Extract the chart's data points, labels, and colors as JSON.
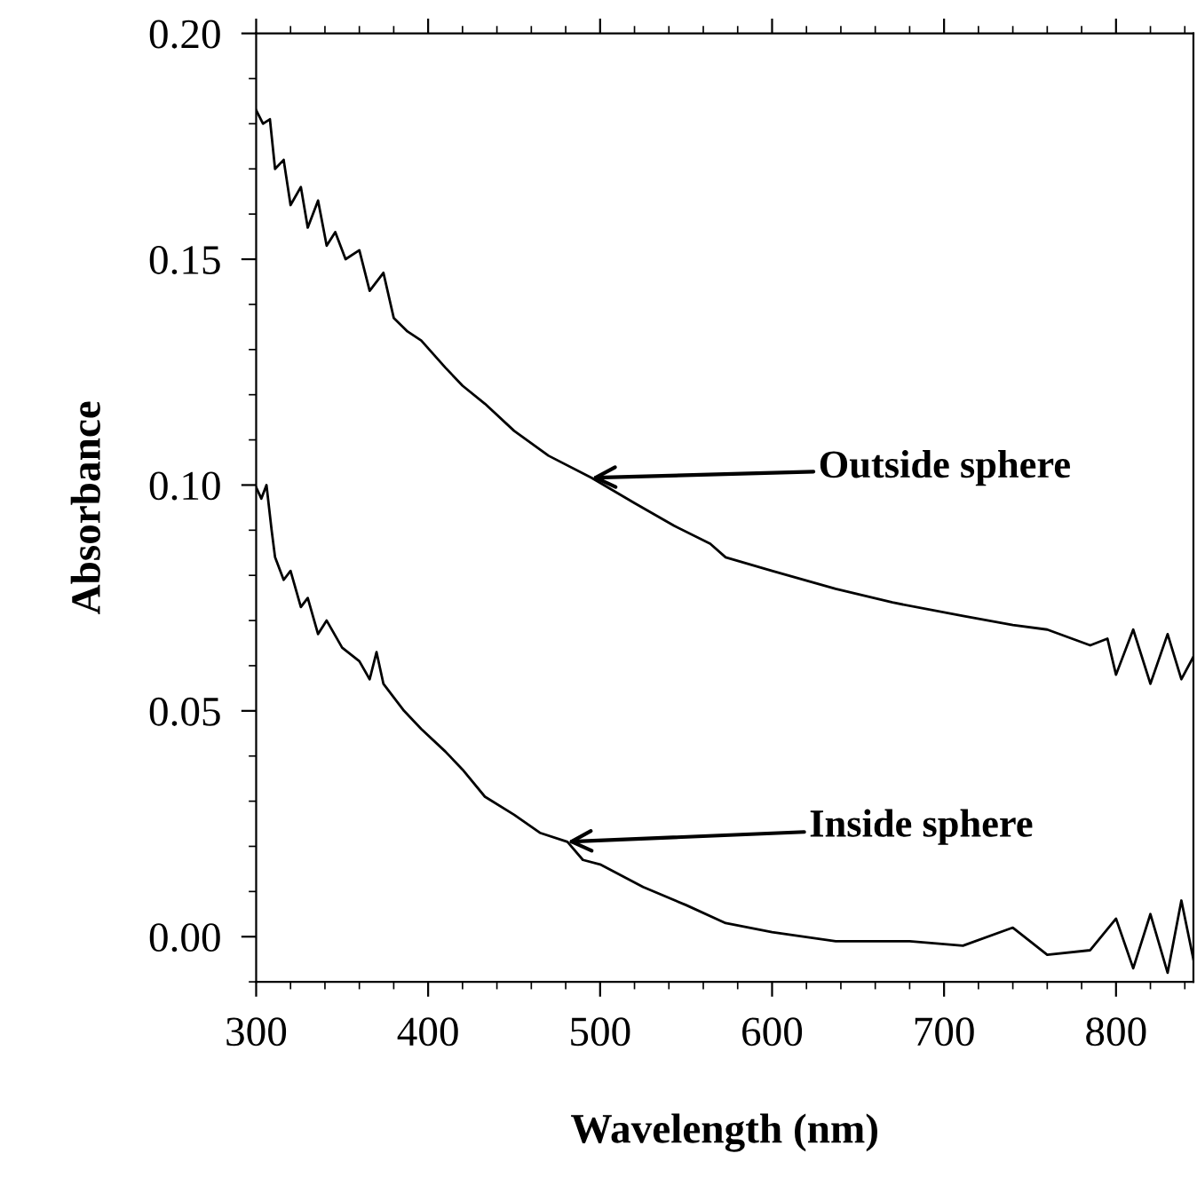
{
  "chart_data": {
    "type": "line",
    "xlabel": "Wavelength (nm)",
    "ylabel": "Absorbance",
    "xlim": [
      300,
      845
    ],
    "ylim": [
      -0.01,
      0.2
    ],
    "xticks": [
      300,
      400,
      500,
      600,
      700,
      800
    ],
    "yticks": [
      {
        "value": 0,
        "label": "0.00"
      },
      {
        "value": 0.05,
        "label": "0.05"
      },
      {
        "value": 0.1,
        "label": "0.10"
      },
      {
        "value": 0.15,
        "label": "0.15"
      },
      {
        "value": 0.2,
        "label": "0.20"
      }
    ],
    "grid": false,
    "legend": false,
    "marker": "none",
    "line_style": "solid",
    "series": [
      {
        "color": "#000000",
        "x": [
          300,
          304,
          308,
          311,
          316,
          320,
          326,
          330,
          336,
          341,
          346,
          352,
          360,
          366,
          374,
          380,
          388,
          396,
          410,
          420,
          433,
          450,
          470,
          495,
          520,
          543,
          564,
          573,
          600,
          637,
          670,
          711,
          740,
          760,
          785,
          795,
          800,
          810,
          820,
          830,
          838,
          845
        ],
        "values": [
          0.183,
          0.18,
          0.181,
          0.17,
          0.172,
          0.162,
          0.166,
          0.157,
          0.163,
          0.153,
          0.156,
          0.15,
          0.152,
          0.143,
          0.147,
          0.137,
          0.134,
          0.132,
          0.126,
          0.122,
          0.118,
          0.112,
          0.1065,
          0.1016,
          0.096,
          0.091,
          0.087,
          0.084,
          0.081,
          0.077,
          0.074,
          0.071,
          0.069,
          0.068,
          0.0645,
          0.066,
          0.058,
          0.068,
          0.056,
          0.067,
          0.057,
          0.062
        ]
      },
      {
        "color": "#000000",
        "x": [
          300,
          303,
          306,
          309,
          311,
          316,
          320,
          326,
          330,
          336,
          341,
          350,
          360,
          366,
          370,
          374,
          386,
          396,
          410,
          420,
          433,
          450,
          465,
          481,
          490,
          500,
          525,
          550,
          573,
          600,
          637,
          680,
          711,
          740,
          760,
          785,
          800,
          810,
          820,
          830,
          838,
          845
        ],
        "values": [
          0.0995,
          0.097,
          0.1,
          0.09,
          0.084,
          0.079,
          0.081,
          0.073,
          0.075,
          0.067,
          0.07,
          0.064,
          0.061,
          0.057,
          0.063,
          0.056,
          0.05,
          0.046,
          0.041,
          0.037,
          0.031,
          0.027,
          0.023,
          0.021,
          0.017,
          0.016,
          0.011,
          0.007,
          0.003,
          0.001,
          -0.001,
          -0.001,
          -0.002,
          0.002,
          -0.004,
          -0.003,
          0.004,
          -0.007,
          0.005,
          -0.008,
          0.008,
          -0.005
        ]
      }
    ],
    "annotations": [
      {
        "text": "Outside sphere",
        "x": 495,
        "y": 0.1016
      },
      {
        "text": "Inside sphere",
        "x": 481,
        "y": 0.021
      }
    ]
  }
}
